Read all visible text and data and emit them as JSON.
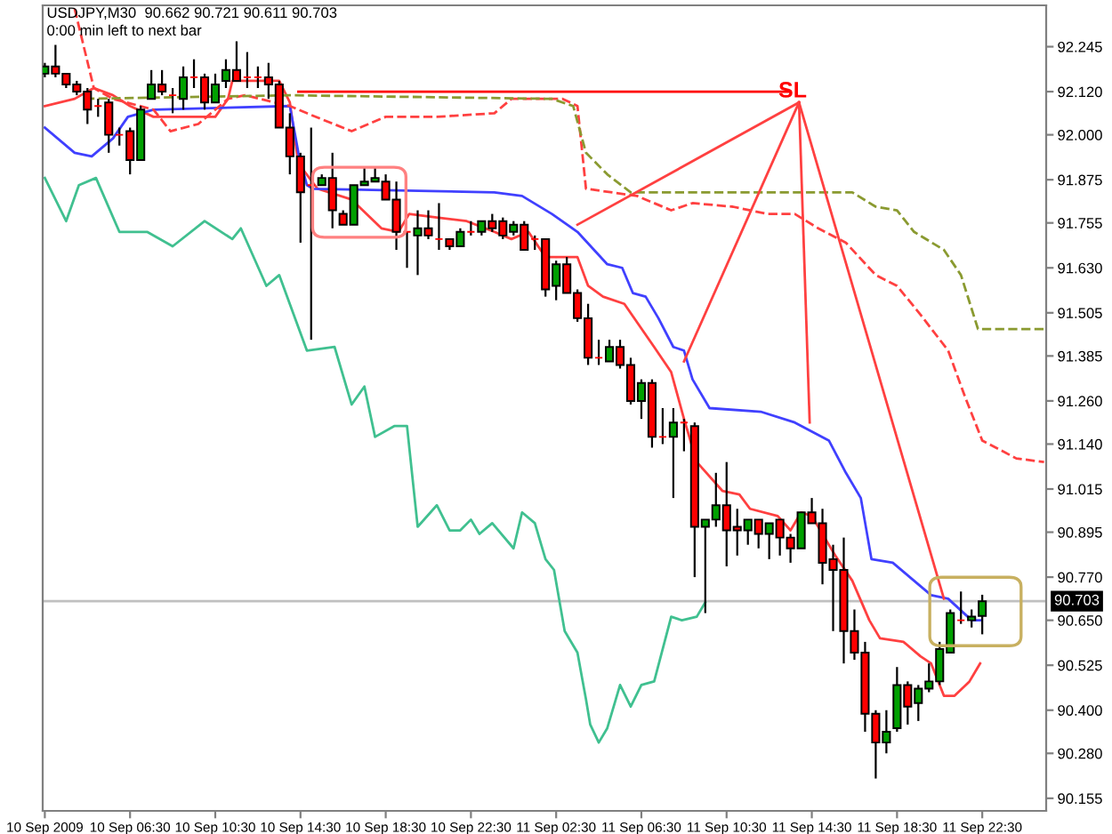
{
  "chart_data": {
    "type": "candlestick",
    "annotations": [
      "USDJPY,M30  90.662 90.721 90.611 90.703",
      "0:00 min left to next bar",
      {
        "text": "SL",
        "x": "2009-09-11T13:36",
        "y": 92.12
      }
    ],
    "x": [
      "2009-09-10T02:30",
      "2009-09-10T03:00",
      "2009-09-10T03:30",
      "2009-09-10T04:00",
      "2009-09-10T04:30",
      "2009-09-10T05:00",
      "2009-09-10T05:30",
      "2009-09-10T06:00",
      "2009-09-10T06:30",
      "2009-09-10T07:00",
      "2009-09-10T07:30",
      "2009-09-10T08:00",
      "2009-09-10T08:30",
      "2009-09-10T09:00",
      "2009-09-10T09:30",
      "2009-09-10T10:00",
      "2009-09-10T10:30",
      "2009-09-10T11:00",
      "2009-09-10T11:30",
      "2009-09-10T12:00",
      "2009-09-10T12:30",
      "2009-09-10T13:00",
      "2009-09-10T13:30",
      "2009-09-10T14:00",
      "2009-09-10T14:30",
      "2009-09-10T15:00",
      "2009-09-10T15:30",
      "2009-09-10T16:00",
      "2009-09-10T16:30",
      "2009-09-10T17:00",
      "2009-09-10T17:30",
      "2009-09-10T18:00",
      "2009-09-10T18:30",
      "2009-09-10T19:00",
      "2009-09-10T19:30",
      "2009-09-10T20:00",
      "2009-09-10T20:30",
      "2009-09-10T21:00",
      "2009-09-10T21:30",
      "2009-09-10T22:00",
      "2009-09-10T22:30",
      "2009-09-10T23:00",
      "2009-09-10T23:30",
      "2009-09-11T00:00",
      "2009-09-11T00:30",
      "2009-09-11T01:00",
      "2009-09-11T01:30",
      "2009-09-11T02:00",
      "2009-09-11T02:30",
      "2009-09-11T03:00",
      "2009-09-11T03:30",
      "2009-09-11T04:00",
      "2009-09-11T04:30",
      "2009-09-11T05:00",
      "2009-09-11T05:30",
      "2009-09-11T06:00",
      "2009-09-11T06:30",
      "2009-09-11T07:00",
      "2009-09-11T07:30",
      "2009-09-11T08:00",
      "2009-09-11T08:30",
      "2009-09-11T09:00",
      "2009-09-11T09:30",
      "2009-09-11T10:00",
      "2009-09-11T10:30",
      "2009-09-11T11:00",
      "2009-09-11T11:30",
      "2009-09-11T12:00",
      "2009-09-11T12:30",
      "2009-09-11T13:00",
      "2009-09-11T13:30",
      "2009-09-11T14:00",
      "2009-09-11T14:30",
      "2009-09-11T15:00",
      "2009-09-11T15:30",
      "2009-09-11T16:00",
      "2009-09-11T16:30",
      "2009-09-11T17:00",
      "2009-09-11T17:30",
      "2009-09-11T18:00",
      "2009-09-11T18:30",
      "2009-09-11T19:00",
      "2009-09-11T19:30",
      "2009-09-11T20:00",
      "2009-09-11T20:30",
      "2009-09-11T21:00",
      "2009-09-11T21:30",
      "2009-09-11T22:00",
      "2009-09-11T22:30"
    ],
    "ohlc": [
      [
        92.17,
        92.2,
        92.16,
        92.19
      ],
      [
        92.19,
        92.25,
        92.16,
        92.17
      ],
      [
        92.17,
        92.17,
        92.13,
        92.14
      ],
      [
        92.14,
        92.15,
        92.11,
        92.12
      ],
      [
        92.12,
        92.13,
        92.03,
        92.07
      ],
      [
        92.08,
        92.1,
        92.05,
        92.08
      ],
      [
        92.09,
        92.1,
        91.95,
        92.0
      ],
      [
        92.0,
        92.02,
        91.97,
        92.0
      ],
      [
        92.01,
        92.02,
        91.89,
        91.93
      ],
      [
        91.93,
        92.08,
        91.93,
        92.07
      ],
      [
        92.1,
        92.18,
        92.1,
        92.14
      ],
      [
        92.14,
        92.18,
        92.11,
        92.12
      ],
      [
        92.11,
        92.13,
        92.06,
        92.11
      ],
      [
        92.1,
        92.19,
        92.07,
        92.16
      ],
      [
        92.16,
        92.21,
        92.13,
        92.16
      ],
      [
        92.16,
        92.17,
        92.07,
        92.09
      ],
      [
        92.09,
        92.17,
        92.09,
        92.14
      ],
      [
        92.15,
        92.21,
        92.13,
        92.18
      ],
      [
        92.18,
        92.26,
        92.15,
        92.15
      ],
      [
        92.16,
        92.23,
        92.13,
        92.16
      ],
      [
        92.16,
        92.19,
        92.13,
        92.16
      ],
      [
        92.16,
        92.2,
        92.1,
        92.14
      ],
      [
        92.14,
        92.15,
        92.02,
        92.02
      ],
      [
        92.02,
        92.06,
        91.89,
        91.94
      ],
      [
        91.94,
        91.95,
        91.7,
        91.84
      ],
      [
        91.86,
        92.02,
        91.43,
        91.86
      ],
      [
        91.86,
        91.89,
        91.86,
        91.88
      ],
      [
        91.88,
        91.95,
        91.74,
        91.79
      ],
      [
        91.78,
        91.79,
        91.75,
        91.75
      ],
      [
        91.75,
        91.86,
        91.75,
        91.86
      ],
      [
        91.86,
        91.91,
        91.86,
        91.87
      ],
      [
        91.87,
        91.91,
        91.87,
        91.88
      ],
      [
        91.87,
        91.89,
        91.82,
        91.82
      ],
      [
        91.82,
        91.87,
        91.68,
        91.73
      ],
      [
        91.73,
        91.73,
        91.63,
        91.73
      ],
      [
        91.72,
        91.79,
        91.61,
        91.74
      ],
      [
        91.74,
        91.79,
        91.71,
        91.72
      ],
      [
        91.71,
        91.81,
        91.68,
        91.71
      ],
      [
        91.71,
        91.71,
        91.68,
        91.69
      ],
      [
        91.69,
        91.74,
        91.69,
        91.73
      ],
      [
        91.73,
        91.76,
        91.72,
        91.73
      ],
      [
        91.73,
        91.76,
        91.72,
        91.76
      ],
      [
        91.76,
        91.78,
        91.73,
        91.74
      ],
      [
        91.76,
        91.77,
        91.71,
        91.72
      ],
      [
        91.73,
        91.76,
        91.72,
        91.75
      ],
      [
        91.75,
        91.76,
        91.68,
        91.68
      ],
      [
        91.71,
        91.72,
        91.68,
        91.71
      ],
      [
        91.71,
        91.71,
        91.55,
        91.57
      ],
      [
        91.58,
        91.65,
        91.54,
        91.64
      ],
      [
        91.64,
        91.66,
        91.56,
        91.56
      ],
      [
        91.56,
        91.57,
        91.48,
        91.49
      ],
      [
        91.49,
        91.53,
        91.36,
        91.38
      ],
      [
        91.38,
        91.43,
        91.36,
        91.38
      ],
      [
        91.37,
        91.43,
        91.37,
        91.41
      ],
      [
        91.41,
        91.43,
        91.35,
        91.36
      ],
      [
        91.36,
        91.38,
        91.25,
        91.26
      ],
      [
        91.26,
        91.32,
        91.21,
        91.31
      ],
      [
        91.31,
        91.32,
        91.13,
        91.16
      ],
      [
        91.16,
        91.24,
        91.14,
        91.16
      ],
      [
        91.16,
        91.24,
        90.99,
        91.2
      ],
      [
        91.2,
        91.21,
        91.12,
        91.2
      ],
      [
        91.19,
        91.2,
        90.77,
        90.91
      ],
      [
        90.91,
        90.93,
        90.67,
        90.93
      ],
      [
        90.93,
        91.06,
        90.91,
        90.97
      ],
      [
        90.97,
        91.09,
        90.8,
        90.9
      ],
      [
        90.91,
        90.96,
        90.83,
        90.9
      ],
      [
        90.9,
        90.93,
        90.86,
        90.93
      ],
      [
        90.93,
        90.93,
        90.85,
        90.89
      ],
      [
        90.89,
        90.92,
        90.82,
        90.92
      ],
      [
        90.93,
        90.93,
        90.83,
        90.88
      ],
      [
        90.88,
        90.89,
        90.81,
        90.85
      ],
      [
        90.85,
        90.95,
        90.85,
        90.95
      ],
      [
        90.95,
        90.99,
        90.92,
        90.92
      ],
      [
        90.92,
        90.96,
        90.75,
        90.81
      ],
      [
        90.82,
        90.86,
        90.62,
        90.79
      ],
      [
        90.79,
        90.88,
        90.53,
        90.62
      ],
      [
        90.62,
        90.68,
        90.54,
        90.56
      ],
      [
        90.56,
        90.59,
        90.34,
        90.39
      ],
      [
        90.39,
        90.4,
        90.21,
        90.31
      ],
      [
        90.31,
        90.4,
        90.28,
        90.34
      ],
      [
        90.35,
        90.52,
        90.34,
        90.47
      ],
      [
        90.47,
        90.48,
        90.36,
        90.41
      ],
      [
        90.42,
        90.47,
        90.37,
        90.46
      ],
      [
        90.46,
        90.53,
        90.45,
        90.48
      ],
      [
        90.48,
        90.59,
        90.47,
        90.57
      ],
      [
        90.56,
        90.68,
        90.56,
        90.67
      ],
      [
        90.65,
        90.73,
        90.64,
        90.65
      ],
      [
        90.65,
        90.68,
        90.63,
        90.66
      ],
      [
        90.662,
        90.721,
        90.611,
        90.703
      ]
    ],
    "colors": [
      "#00a000",
      "#ff0000",
      "#ff0000",
      "#ff0000",
      "#ff0000",
      "#ff0000",
      "#ff0000",
      "#ff0000",
      "#ff0000",
      "#00a000",
      "#00a000",
      "#ff0000",
      "#ff0000",
      "#00a000",
      "#ff0000",
      "#ff0000",
      "#00a000",
      "#00a000",
      "#ff0000",
      "#ff0000",
      "#ff0000",
      "#ff0000",
      "#ff0000",
      "#ff0000",
      "#ff0000",
      "#ff0000",
      "#00a000",
      "#ff0000",
      "#ff0000",
      "#00a000",
      "#00a000",
      "#00a000",
      "#ff0000",
      "#ff0000",
      "#ff0000",
      "#00a000",
      "#ff0000",
      "#ff0000",
      "#ff0000",
      "#00a000",
      "#ff0000",
      "#00a000",
      "#ff0000",
      "#ff0000",
      "#00a000",
      "#ff0000",
      "#ff0000",
      "#ff0000",
      "#00a000",
      "#ff0000",
      "#ff0000",
      "#ff0000",
      "#ff0000",
      "#00a000",
      "#ff0000",
      "#ff0000",
      "#00a000",
      "#ff0000",
      "#ff0000",
      "#00a000",
      "#ff0000",
      "#ff0000",
      "#00a000",
      "#00a000",
      "#ff0000",
      "#ff0000",
      "#00a000",
      "#ff0000",
      "#00a000",
      "#ff0000",
      "#ff0000",
      "#00a000",
      "#ff0000",
      "#ff0000",
      "#ff0000",
      "#ff0000",
      "#ff0000",
      "#ff0000",
      "#ff0000",
      "#00a000",
      "#00a000",
      "#ff0000",
      "#00a000",
      "#00a000",
      "#00a000",
      "#00a000",
      "#ff0000",
      "#00a000",
      "#00a000"
    ],
    "series": [
      {
        "type": "line",
        "color": "#ff4040",
        "line_style": "solid",
        "x": [
          "2009-09-10T02:30",
          "2009-09-10T03:54",
          "2009-09-10T04:48",
          "2009-09-10T05:42",
          "2009-09-10T06:30",
          "2009-09-10T07:36",
          "2009-09-10T08:54",
          "2009-09-10T10:30",
          "2009-09-10T11:06",
          "2009-09-10T11:18",
          "2009-09-10T13:30",
          "2009-09-10T14:00",
          "2009-09-10T14:24",
          "2009-09-10T15:18",
          "2009-09-10T16:54",
          "2009-09-10T18:18",
          "2009-09-10T19:06",
          "2009-09-10T19:36",
          "2009-09-10T20:54",
          "2009-09-10T22:18",
          "2009-09-10T23:36",
          "2009-09-11T00:24",
          "2009-09-11T01:12",
          "2009-09-11T02:00",
          "2009-09-11T03:30",
          "2009-09-11T04:00",
          "2009-09-11T04:42",
          "2009-09-11T05:42",
          "2009-09-11T07:06",
          "2009-09-11T07:54",
          "2009-09-11T08:30",
          "2009-09-11T09:06",
          "2009-09-11T10:18",
          "2009-09-11T11:06",
          "2009-09-11T11:36",
          "2009-09-11T12:54",
          "2009-09-11T13:30",
          "2009-09-11T14:00",
          "2009-09-11T14:30",
          "2009-09-11T15:06",
          "2009-09-11T15:36",
          "2009-09-11T16:24",
          "2009-09-11T17:12",
          "2009-09-11T17:42",
          "2009-09-11T18:48",
          "2009-09-11T19:36",
          "2009-09-11T20:06",
          "2009-09-11T20:42",
          "2009-09-11T21:12",
          "2009-09-11T21:54",
          "2009-09-11T22:24"
        ],
        "values": [
          92.08,
          92.1,
          92.13,
          92.11,
          92.08,
          92.05,
          92.05,
          92.05,
          92.1,
          92.15,
          92.15,
          92.09,
          91.92,
          91.85,
          91.82,
          91.74,
          91.73,
          91.78,
          91.77,
          91.76,
          91.73,
          91.71,
          91.73,
          91.66,
          91.66,
          91.58,
          91.55,
          91.53,
          91.41,
          91.34,
          91.21,
          91.09,
          91.01,
          91.0,
          90.96,
          90.94,
          90.9,
          90.95,
          90.94,
          90.88,
          90.83,
          90.76,
          90.65,
          90.6,
          90.59,
          90.55,
          90.53,
          90.44,
          90.44,
          90.48,
          90.53
        ]
      },
      {
        "type": "line",
        "color": "#4040ff",
        "line_style": "solid",
        "x": [
          "2009-09-10T02:30",
          "2009-09-10T03:54",
          "2009-09-10T04:42",
          "2009-09-10T05:42",
          "2009-09-10T06:24",
          "2009-09-10T07:36",
          "2009-09-10T14:00",
          "2009-09-10T14:24",
          "2009-09-10T14:48",
          "2009-09-10T15:06",
          "2009-09-10T23:36",
          "2009-09-11T00:54",
          "2009-09-11T02:18",
          "2009-09-11T03:30",
          "2009-09-11T04:54",
          "2009-09-11T05:36",
          "2009-09-11T06:06",
          "2009-09-11T06:42",
          "2009-09-11T07:18",
          "2009-09-11T08:00",
          "2009-09-11T08:30",
          "2009-09-11T08:54",
          "2009-09-11T09:42",
          "2009-09-11T12:06",
          "2009-09-11T13:42",
          "2009-09-11T15:18",
          "2009-09-11T16:06",
          "2009-09-11T16:48",
          "2009-09-11T17:18",
          "2009-09-11T18:18",
          "2009-09-11T19:06",
          "2009-09-11T20:06",
          "2009-09-11T20:54",
          "2009-09-11T22:00",
          "2009-09-11T22:24"
        ],
        "values": [
          92.02,
          91.95,
          91.94,
          91.99,
          92.05,
          92.07,
          92.08,
          91.95,
          91.86,
          91.85,
          91.84,
          91.83,
          91.78,
          91.73,
          91.64,
          91.63,
          91.56,
          91.55,
          91.49,
          91.41,
          91.4,
          91.32,
          91.24,
          91.23,
          91.2,
          91.15,
          91.06,
          90.99,
          90.82,
          90.81,
          90.77,
          90.72,
          90.71,
          90.65,
          90.65
        ]
      },
      {
        "type": "line",
        "color": "#40c090",
        "line_style": "solid",
        "x": [
          "2009-09-10T02:30",
          "2009-09-10T03:30",
          "2009-09-10T04:06",
          "2009-09-10T04:54",
          "2009-09-10T06:00",
          "2009-09-10T07:18",
          "2009-09-10T08:30",
          "2009-09-10T10:00",
          "2009-09-10T11:18",
          "2009-09-10T11:42",
          "2009-09-10T12:54",
          "2009-09-10T13:30",
          "2009-09-10T14:48",
          "2009-09-10T16:06",
          "2009-09-10T16:54",
          "2009-09-10T17:30",
          "2009-09-10T18:00",
          "2009-09-10T18:54",
          "2009-09-10T19:30",
          "2009-09-10T20:00",
          "2009-09-10T20:54",
          "2009-09-10T21:30",
          "2009-09-10T22:00",
          "2009-09-10T22:30",
          "2009-09-10T22:54",
          "2009-09-10T23:30",
          "2009-09-11T00:30",
          "2009-09-11T00:54",
          "2009-09-11T01:30",
          "2009-09-11T02:00",
          "2009-09-11T02:24",
          "2009-09-11T02:54",
          "2009-09-11T03:30",
          "2009-09-11T03:54",
          "2009-09-11T04:06",
          "2009-09-11T04:30",
          "2009-09-11T04:54",
          "2009-09-11T05:30",
          "2009-09-11T06:00",
          "2009-09-11T06:30",
          "2009-09-11T07:06",
          "2009-09-11T07:54",
          "2009-09-11T08:24",
          "2009-09-11T09:06",
          "2009-09-11T09:30"
        ],
        "values": [
          91.88,
          91.76,
          91.86,
          91.88,
          91.73,
          91.73,
          91.69,
          91.76,
          91.71,
          91.74,
          91.58,
          91.61,
          91.4,
          91.41,
          91.25,
          91.3,
          91.16,
          91.19,
          91.19,
          90.91,
          90.97,
          90.9,
          90.9,
          90.93,
          90.89,
          90.92,
          90.85,
          90.95,
          90.92,
          90.82,
          90.79,
          90.62,
          90.56,
          90.43,
          90.36,
          90.31,
          90.35,
          90.47,
          90.41,
          90.47,
          90.48,
          90.66,
          90.65,
          90.66,
          90.7
        ]
      },
      {
        "type": "line",
        "color": "#ff4040",
        "line_style": "dashed",
        "x": [
          "2009-09-10T03:54",
          "2009-09-10T04:48",
          "2009-09-10T05:42",
          "2009-09-10T07:36",
          "2009-09-10T08:24",
          "2009-09-10T09:42",
          "2009-09-10T11:06",
          "2009-09-10T11:54",
          "2009-09-10T14:00",
          "2009-09-10T14:48",
          "2009-09-10T16:54",
          "2009-09-10T18:30",
          "2009-09-10T20:54",
          "2009-09-10T23:36",
          "2009-09-11T00:24",
          "2009-09-11T02:48",
          "2009-09-11T03:30",
          "2009-09-11T03:54",
          "2009-09-11T06:18",
          "2009-09-11T07:54",
          "2009-09-11T08:54",
          "2009-09-11T10:48",
          "2009-09-11T12:24",
          "2009-09-11T13:42",
          "2009-09-11T14:48",
          "2009-09-11T16:06",
          "2009-09-11T17:30",
          "2009-09-11T18:30",
          "2009-09-11T19:36",
          "2009-09-11T20:54",
          "2009-09-11T21:42",
          "2009-09-11T22:30",
          "2009-09-12T00:06",
          "2009-09-12T01:24"
        ],
        "values": [
          92.35,
          92.13,
          92.1,
          92.07,
          92.01,
          92.03,
          92.1,
          92.11,
          92.08,
          92.06,
          92.01,
          92.05,
          92.05,
          92.06,
          92.1,
          92.1,
          92.08,
          91.85,
          91.83,
          91.79,
          91.81,
          91.8,
          91.78,
          91.78,
          91.74,
          91.7,
          91.61,
          91.58,
          91.5,
          91.4,
          91.27,
          91.15,
          91.1,
          91.09
        ]
      },
      {
        "type": "line",
        "color": "#8a9a30",
        "line_style": "dashed",
        "x": [
          "2009-09-10T04:24",
          "2009-09-10T14:00",
          "2009-09-11T02:18",
          "2009-09-11T03:18",
          "2009-09-11T03:54",
          "2009-09-11T04:54",
          "2009-09-11T06:00",
          "2009-09-11T16:24",
          "2009-09-11T17:30",
          "2009-09-11T18:30",
          "2009-09-11T19:18",
          "2009-09-11T20:42",
          "2009-09-11T21:30",
          "2009-09-11T22:18",
          "2009-09-12T01:24"
        ],
        "values": [
          92.1,
          92.11,
          92.1,
          92.08,
          91.95,
          91.89,
          91.84,
          91.84,
          91.8,
          91.79,
          91.73,
          91.68,
          91.61,
          91.46,
          91.46
        ]
      },
      {
        "type": "line",
        "color": "#ff0000",
        "line_style": "solid",
        "x": [
          "2009-09-10T14:24",
          "2009-09-11T13:30"
        ],
        "values": [
          92.12,
          92.12
        ]
      },
      {
        "type": "line",
        "color": "#ff4040",
        "line_style": "solid",
        "x": [
          "2009-09-11T13:54",
          "2009-09-11T03:30"
        ],
        "values": [
          92.09,
          91.75
        ]
      },
      {
        "type": "line",
        "color": "#ff4040",
        "line_style": "solid",
        "x": [
          "2009-09-11T13:54",
          "2009-09-11T08:30"
        ],
        "values": [
          92.09,
          91.37
        ]
      },
      {
        "type": "line",
        "color": "#ff4040",
        "line_style": "solid",
        "x": [
          "2009-09-11T13:54",
          "2009-09-11T14:24"
        ],
        "values": [
          92.09,
          91.2
        ]
      },
      {
        "type": "line",
        "color": "#ff4040",
        "line_style": "solid",
        "x": [
          "2009-09-11T13:54",
          "2009-09-11T20:42"
        ],
        "values": [
          92.09,
          90.71
        ]
      }
    ],
    "xlim": [
      "2009-09-10T02:24",
      "2009-09-12T01:30"
    ],
    "xticks": [
      {
        "value": "2009-09-10T02:30",
        "label": "10 Sep 2009"
      },
      {
        "value": "2009-09-10T06:30",
        "label": "10 Sep 06:30"
      },
      {
        "value": "2009-09-10T10:30",
        "label": "10 Sep 10:30"
      },
      {
        "value": "2009-09-10T14:30",
        "label": "10 Sep 14:30"
      },
      {
        "value": "2009-09-10T18:30",
        "label": "10 Sep 18:30"
      },
      {
        "value": "2009-09-10T22:30",
        "label": "10 Sep 22:30"
      },
      {
        "value": "2009-09-11T02:30",
        "label": "11 Sep 02:30"
      },
      {
        "value": "2009-09-11T06:30",
        "label": "11 Sep 06:30"
      },
      {
        "value": "2009-09-11T10:30",
        "label": "11 Sep 10:30"
      },
      {
        "value": "2009-09-11T14:30",
        "label": "11 Sep 14:30"
      },
      {
        "value": "2009-09-11T18:30",
        "label": "11 Sep 18:30"
      },
      {
        "value": "2009-09-11T22:30",
        "label": "11 Sep 22:30"
      }
    ],
    "ylim": [
      90.12,
      92.36
    ],
    "yticks": [
      {
        "value": 90.155,
        "label": "90.155"
      },
      {
        "value": 90.28,
        "label": "90.280"
      },
      {
        "value": 90.4,
        "label": "90.400"
      },
      {
        "value": 90.525,
        "label": "90.525"
      },
      {
        "value": 90.65,
        "label": "90.650"
      },
      {
        "value": 90.77,
        "label": "90.770"
      },
      {
        "value": 90.895,
        "label": "90.895"
      },
      {
        "value": 91.015,
        "label": "91.015"
      },
      {
        "value": 91.14,
        "label": "91.140"
      },
      {
        "value": 91.26,
        "label": "91.260"
      },
      {
        "value": 91.385,
        "label": "91.385"
      },
      {
        "value": 91.505,
        "label": "91.505"
      },
      {
        "value": 91.63,
        "label": "91.630"
      },
      {
        "value": 91.755,
        "label": "91.755"
      },
      {
        "value": 91.875,
        "label": "91.875"
      },
      {
        "value": 92.0,
        "label": "92.000"
      },
      {
        "value": 92.12,
        "label": "92.120"
      },
      {
        "value": 92.245,
        "label": "92.245"
      }
    ],
    "ref_lines": [
      {
        "axis": "y",
        "value": 90.703,
        "label": "90.703",
        "color": "#c0c0c0"
      }
    ]
  }
}
